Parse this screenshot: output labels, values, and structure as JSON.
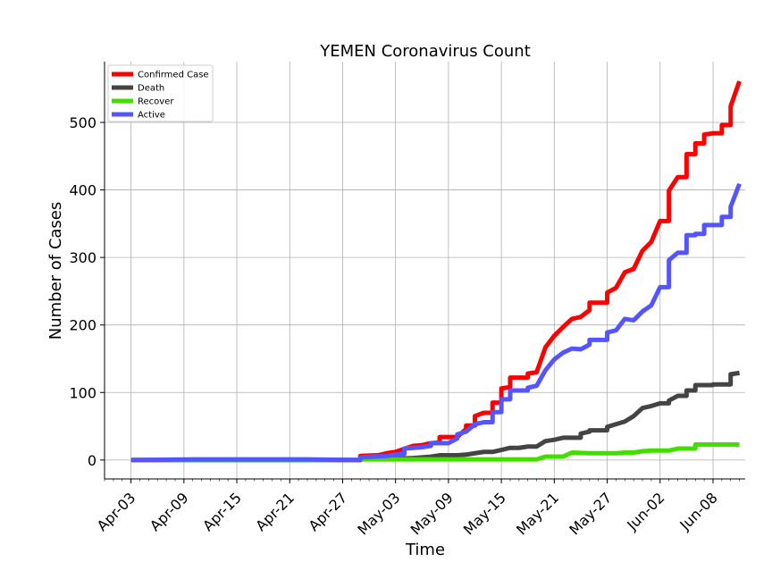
{
  "chart_data": {
    "type": "line",
    "title": "YEMEN Coronavirus Count",
    "xlabel": "Time",
    "ylabel": "Number of Cases",
    "x_tick_labels": [
      "Apr-03",
      "Apr-09",
      "Apr-15",
      "Apr-21",
      "Apr-27",
      "May-03",
      "May-09",
      "May-15",
      "May-21",
      "May-27",
      "Jun-02",
      "Jun-08"
    ],
    "y_ticks": [
      0,
      100,
      200,
      300,
      400,
      500
    ],
    "ylim": [
      -28,
      590
    ],
    "xlim": [
      "2020-04-00",
      "2020-06-11"
    ],
    "grid": true,
    "legend_position": "top-left",
    "series": [
      {
        "name": "Confirmed Case",
        "color": "#ff0000",
        "points": [
          [
            "2020-04-03",
            0
          ],
          [
            "2020-04-29",
            0
          ],
          [
            "2020-04-29",
            6
          ],
          [
            "2020-05-01",
            7
          ],
          [
            "2020-05-02",
            10
          ],
          [
            "2020-05-03",
            12
          ],
          [
            "2020-05-05",
            21
          ],
          [
            "2020-05-06",
            22
          ],
          [
            "2020-05-07",
            25
          ],
          [
            "2020-05-08",
            26
          ],
          [
            "2020-05-08",
            34
          ],
          [
            "2020-05-10",
            34
          ],
          [
            "2020-05-11",
            46
          ],
          [
            "2020-05-11",
            51
          ],
          [
            "2020-05-12",
            51
          ],
          [
            "2020-05-12",
            65
          ],
          [
            "2020-05-13",
            70
          ],
          [
            "2020-05-14",
            70
          ],
          [
            "2020-05-14",
            85
          ],
          [
            "2020-05-15",
            85
          ],
          [
            "2020-05-15",
            106
          ],
          [
            "2020-05-16",
            108
          ],
          [
            "2020-05-16",
            122
          ],
          [
            "2020-05-18",
            122
          ],
          [
            "2020-05-18",
            128
          ],
          [
            "2020-05-19",
            130
          ],
          [
            "2020-05-20",
            167
          ],
          [
            "2020-05-21",
            184
          ],
          [
            "2020-05-22",
            197
          ],
          [
            "2020-05-23",
            209
          ],
          [
            "2020-05-24",
            212
          ],
          [
            "2020-05-25",
            222
          ],
          [
            "2020-05-25",
            233
          ],
          [
            "2020-05-27",
            233
          ],
          [
            "2020-05-27",
            248
          ],
          [
            "2020-05-28",
            255
          ],
          [
            "2020-05-29",
            278
          ],
          [
            "2020-05-30",
            283
          ],
          [
            "2020-05-31",
            310
          ],
          [
            "2020-06-01",
            323
          ],
          [
            "2020-06-01",
            323
          ],
          [
            "2020-06-02",
            354
          ],
          [
            "2020-06-03",
            354
          ],
          [
            "2020-06-03",
            399
          ],
          [
            "2020-06-04",
            419
          ],
          [
            "2020-06-05",
            419
          ],
          [
            "2020-06-05",
            453
          ],
          [
            "2020-06-06",
            453
          ],
          [
            "2020-06-06",
            469
          ],
          [
            "2020-06-07",
            469
          ],
          [
            "2020-06-07",
            482
          ],
          [
            "2020-06-08",
            484
          ],
          [
            "2020-06-09",
            484
          ],
          [
            "2020-06-09",
            496
          ],
          [
            "2020-06-10",
            496
          ],
          [
            "2020-06-10",
            524
          ],
          [
            "2020-06-11",
            561
          ]
        ]
      },
      {
        "name": "Death",
        "color": "#444444",
        "points": [
          [
            "2020-04-03",
            0
          ],
          [
            "2020-04-29",
            0
          ],
          [
            "2020-04-29",
            1
          ],
          [
            "2020-05-03",
            2
          ],
          [
            "2020-05-05",
            3
          ],
          [
            "2020-05-07",
            5
          ],
          [
            "2020-05-08",
            7
          ],
          [
            "2020-05-10",
            7
          ],
          [
            "2020-05-11",
            8
          ],
          [
            "2020-05-12",
            10
          ],
          [
            "2020-05-13",
            12
          ],
          [
            "2020-05-14",
            12
          ],
          [
            "2020-05-15",
            15
          ],
          [
            "2020-05-16",
            18
          ],
          [
            "2020-05-17",
            18
          ],
          [
            "2020-05-18",
            20
          ],
          [
            "2020-05-19",
            20
          ],
          [
            "2020-05-20",
            28
          ],
          [
            "2020-05-21",
            30
          ],
          [
            "2020-05-22",
            33
          ],
          [
            "2020-05-24",
            33
          ],
          [
            "2020-05-24",
            39
          ],
          [
            "2020-05-25",
            42
          ],
          [
            "2020-05-25",
            44
          ],
          [
            "2020-05-27",
            44
          ],
          [
            "2020-05-27",
            49
          ],
          [
            "2020-05-28",
            53
          ],
          [
            "2020-05-29",
            57
          ],
          [
            "2020-05-30",
            65
          ],
          [
            "2020-05-31",
            77
          ],
          [
            "2020-06-01",
            80
          ],
          [
            "2020-06-02",
            84
          ],
          [
            "2020-06-03",
            84
          ],
          [
            "2020-06-03",
            88
          ],
          [
            "2020-06-04",
            95
          ],
          [
            "2020-06-05",
            95
          ],
          [
            "2020-06-05",
            103
          ],
          [
            "2020-06-06",
            103
          ],
          [
            "2020-06-06",
            111
          ],
          [
            "2020-06-08",
            111
          ],
          [
            "2020-06-08",
            112
          ],
          [
            "2020-06-10",
            112
          ],
          [
            "2020-06-10",
            127
          ],
          [
            "2020-06-11",
            129
          ]
        ]
      },
      {
        "name": "Recover",
        "color": "#44dd00",
        "points": [
          [
            "2020-04-03",
            0
          ],
          [
            "2020-04-29",
            0
          ],
          [
            "2020-04-29",
            1
          ],
          [
            "2020-05-19",
            1
          ],
          [
            "2020-05-20",
            5
          ],
          [
            "2020-05-22",
            5
          ],
          [
            "2020-05-23",
            11
          ],
          [
            "2020-05-25",
            10
          ],
          [
            "2020-05-28",
            10
          ],
          [
            "2020-05-29",
            11
          ],
          [
            "2020-05-30",
            11
          ],
          [
            "2020-05-31",
            13
          ],
          [
            "2020-06-01",
            14
          ],
          [
            "2020-06-03",
            14
          ],
          [
            "2020-06-04",
            17
          ],
          [
            "2020-06-05",
            17
          ],
          [
            "2020-06-06",
            17
          ],
          [
            "2020-06-06",
            23
          ],
          [
            "2020-06-11",
            23
          ]
        ]
      },
      {
        "name": "Active",
        "color": "#5555ff",
        "points": [
          [
            "2020-04-03",
            0
          ],
          [
            "2020-04-10",
            1
          ],
          [
            "2020-04-23",
            1
          ],
          [
            "2020-04-29",
            0
          ],
          [
            "2020-04-29",
            4
          ],
          [
            "2020-05-02",
            6
          ],
          [
            "2020-05-03",
            8
          ],
          [
            "2020-05-04",
            9
          ],
          [
            "2020-05-04",
            17
          ],
          [
            "2020-05-06",
            19
          ],
          [
            "2020-05-07",
            21
          ],
          [
            "2020-05-07",
            25
          ],
          [
            "2020-05-09",
            25
          ],
          [
            "2020-05-10",
            32
          ],
          [
            "2020-05-10",
            38
          ],
          [
            "2020-05-11",
            42
          ],
          [
            "2020-05-11",
            42
          ],
          [
            "2020-05-12",
            53
          ],
          [
            "2020-05-13",
            56
          ],
          [
            "2020-05-14",
            56
          ],
          [
            "2020-05-14",
            71
          ],
          [
            "2020-05-15",
            71
          ],
          [
            "2020-05-15",
            90
          ],
          [
            "2020-05-16",
            90
          ],
          [
            "2020-05-16",
            103
          ],
          [
            "2020-05-18",
            103
          ],
          [
            "2020-05-18",
            107
          ],
          [
            "2020-05-19",
            110
          ],
          [
            "2020-05-20",
            133
          ],
          [
            "2020-05-21",
            149
          ],
          [
            "2020-05-22",
            159
          ],
          [
            "2020-05-23",
            165
          ],
          [
            "2020-05-24",
            164
          ],
          [
            "2020-05-25",
            171
          ],
          [
            "2020-05-25",
            178
          ],
          [
            "2020-05-27",
            178
          ],
          [
            "2020-05-27",
            189
          ],
          [
            "2020-05-28",
            192
          ],
          [
            "2020-05-29",
            209
          ],
          [
            "2020-05-30",
            207
          ],
          [
            "2020-05-31",
            220
          ],
          [
            "2020-06-01",
            229
          ],
          [
            "2020-06-02",
            256
          ],
          [
            "2020-06-03",
            256
          ],
          [
            "2020-06-03",
            296
          ],
          [
            "2020-06-04",
            307
          ],
          [
            "2020-06-05",
            307
          ],
          [
            "2020-06-05",
            333
          ],
          [
            "2020-06-06",
            333
          ],
          [
            "2020-06-06",
            335
          ],
          [
            "2020-06-07",
            335
          ],
          [
            "2020-06-07",
            348
          ],
          [
            "2020-06-08",
            348
          ],
          [
            "2020-06-09",
            348
          ],
          [
            "2020-06-09",
            360
          ],
          [
            "2020-06-10",
            360
          ],
          [
            "2020-06-10",
            375
          ],
          [
            "2020-06-11",
            409
          ]
        ]
      }
    ]
  }
}
